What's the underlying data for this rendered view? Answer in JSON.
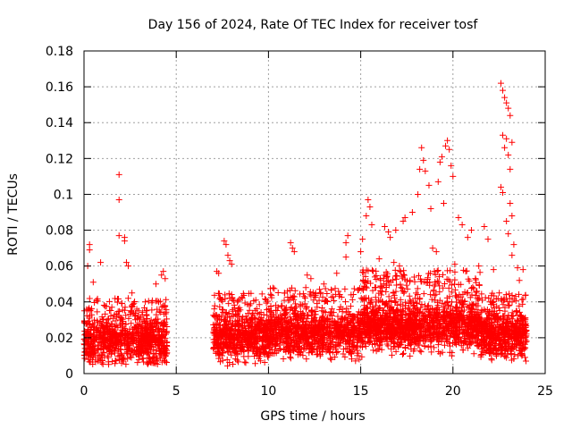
{
  "chart_data": {
    "type": "scatter",
    "title": "Day 156 of 2024, Rate Of TEC Index for receiver tosf",
    "xlabel": "GPS time / hours",
    "ylabel": "ROTI / TECUs",
    "xlim": [
      0,
      25
    ],
    "ylim": [
      0,
      0.18
    ],
    "x_ticks": [
      "0",
      "5",
      "10",
      "15",
      "20",
      "25"
    ],
    "y_ticks": [
      "0",
      "0.02",
      "0.04",
      "0.06",
      "0.08",
      "0.1",
      "0.12",
      "0.14",
      "0.16",
      "0.18"
    ],
    "grid": true,
    "marker": "+",
    "color": "#ff0000",
    "series": [
      {
        "name": "ROTI",
        "points": [
          [
            1.9,
            0.111
          ],
          [
            1.9,
            0.097
          ],
          [
            1.9,
            0.077
          ],
          [
            2.2,
            0.076
          ],
          [
            2.2,
            0.074
          ],
          [
            0.3,
            0.072
          ],
          [
            0.3,
            0.069
          ],
          [
            0.2,
            0.06
          ],
          [
            0.5,
            0.051
          ],
          [
            0.9,
            0.062
          ],
          [
            2.3,
            0.062
          ],
          [
            2.4,
            0.06
          ],
          [
            2.6,
            0.045
          ],
          [
            3.9,
            0.05
          ],
          [
            4.2,
            0.055
          ],
          [
            4.3,
            0.057
          ],
          [
            4.4,
            0.053
          ],
          [
            7.6,
            0.074
          ],
          [
            7.7,
            0.072
          ],
          [
            7.8,
            0.066
          ],
          [
            7.9,
            0.063
          ],
          [
            8.0,
            0.061
          ],
          [
            7.2,
            0.057
          ],
          [
            7.3,
            0.056
          ],
          [
            11.2,
            0.073
          ],
          [
            11.3,
            0.07
          ],
          [
            11.4,
            0.068
          ],
          [
            12.1,
            0.055
          ],
          [
            12.3,
            0.053
          ],
          [
            13.0,
            0.05
          ],
          [
            13.7,
            0.056
          ],
          [
            14.2,
            0.065
          ],
          [
            14.3,
            0.077
          ],
          [
            14.2,
            0.073
          ],
          [
            15.0,
            0.068
          ],
          [
            15.4,
            0.097
          ],
          [
            15.5,
            0.093
          ],
          [
            15.3,
            0.088
          ],
          [
            15.6,
            0.083
          ],
          [
            15.1,
            0.075
          ],
          [
            16.3,
            0.082
          ],
          [
            16.5,
            0.079
          ],
          [
            16.6,
            0.076
          ],
          [
            16.9,
            0.08
          ],
          [
            17.3,
            0.085
          ],
          [
            17.4,
            0.087
          ],
          [
            17.8,
            0.09
          ],
          [
            18.2,
            0.114
          ],
          [
            18.3,
            0.126
          ],
          [
            18.4,
            0.119
          ],
          [
            18.5,
            0.113
          ],
          [
            18.1,
            0.1
          ],
          [
            18.7,
            0.105
          ],
          [
            18.8,
            0.092
          ],
          [
            19.2,
            0.107
          ],
          [
            19.3,
            0.118
          ],
          [
            19.4,
            0.121
          ],
          [
            19.6,
            0.127
          ],
          [
            19.7,
            0.13
          ],
          [
            19.8,
            0.125
          ],
          [
            19.9,
            0.116
          ],
          [
            20.0,
            0.11
          ],
          [
            19.5,
            0.095
          ],
          [
            20.3,
            0.087
          ],
          [
            20.5,
            0.083
          ],
          [
            20.8,
            0.076
          ],
          [
            21.0,
            0.08
          ],
          [
            21.7,
            0.082
          ],
          [
            21.9,
            0.075
          ],
          [
            22.6,
            0.162
          ],
          [
            22.7,
            0.158
          ],
          [
            22.8,
            0.154
          ],
          [
            22.9,
            0.151
          ],
          [
            23.0,
            0.148
          ],
          [
            23.1,
            0.144
          ],
          [
            22.7,
            0.133
          ],
          [
            22.9,
            0.131
          ],
          [
            23.2,
            0.129
          ],
          [
            22.8,
            0.126
          ],
          [
            23.0,
            0.122
          ],
          [
            23.1,
            0.114
          ],
          [
            22.6,
            0.104
          ],
          [
            22.7,
            0.101
          ],
          [
            23.1,
            0.095
          ],
          [
            23.2,
            0.088
          ],
          [
            22.9,
            0.085
          ],
          [
            23.0,
            0.078
          ],
          [
            23.3,
            0.072
          ],
          [
            23.2,
            0.066
          ],
          [
            23.5,
            0.059
          ],
          [
            23.8,
            0.058
          ],
          [
            23.6,
            0.052
          ],
          [
            16.0,
            0.064
          ],
          [
            16.8,
            0.062
          ],
          [
            17.1,
            0.06
          ],
          [
            18.9,
            0.07
          ],
          [
            19.1,
            0.068
          ],
          [
            20.1,
            0.061
          ],
          [
            21.4,
            0.06
          ],
          [
            22.2,
            0.058
          ]
        ],
        "bands": [
          {
            "x_start": 0.0,
            "x_end": 4.5,
            "y_low": 0.005,
            "y_base": 0.018,
            "y_high": 0.042,
            "count": 900
          },
          {
            "x_start": 7.0,
            "x_end": 10.0,
            "y_low": 0.004,
            "y_base": 0.02,
            "y_high": 0.045,
            "count": 650
          },
          {
            "x_start": 10.0,
            "x_end": 15.0,
            "y_low": 0.007,
            "y_base": 0.022,
            "y_high": 0.048,
            "count": 1000
          },
          {
            "x_start": 15.0,
            "x_end": 21.5,
            "y_low": 0.008,
            "y_base": 0.026,
            "y_high": 0.058,
            "count": 1500
          },
          {
            "x_start": 21.5,
            "x_end": 24.0,
            "y_low": 0.006,
            "y_base": 0.021,
            "y_high": 0.045,
            "count": 600
          }
        ]
      }
    ]
  }
}
